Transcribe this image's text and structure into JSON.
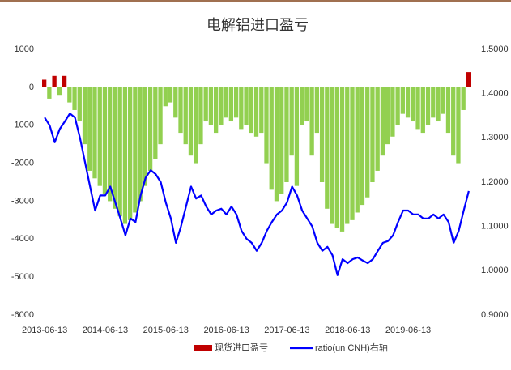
{
  "chart_data": {
    "type": "bar_line",
    "title": "电解铝进口盈亏",
    "categories": [
      "2013-06-13",
      null,
      null,
      null,
      null,
      null,
      null,
      null,
      null,
      null,
      null,
      null,
      "2014-06-13",
      null,
      null,
      null,
      null,
      null,
      null,
      null,
      null,
      null,
      null,
      null,
      "2015-06-13",
      null,
      null,
      null,
      null,
      null,
      null,
      null,
      null,
      null,
      null,
      null,
      "2016-06-13",
      null,
      null,
      null,
      null,
      null,
      null,
      null,
      null,
      null,
      null,
      null,
      "2017-06-13",
      null,
      null,
      null,
      null,
      null,
      null,
      null,
      null,
      null,
      null,
      null,
      "2018-06-13",
      null,
      null,
      null,
      null,
      null,
      null,
      null,
      null,
      null,
      null,
      null,
      "2019-06-13",
      null,
      null,
      null,
      null,
      null,
      null,
      null,
      null,
      null,
      null,
      null,
      null
    ],
    "series": [
      {
        "name": "现货进口盈亏",
        "color": "#c00000",
        "negative_color": "#92d050",
        "values": [
          200,
          -300,
          300,
          -200,
          300,
          -400,
          -600,
          -900,
          -1500,
          -2200,
          -2400,
          -2600,
          -2800,
          -3000,
          -3200,
          -3400,
          -3600,
          -3500,
          -3300,
          -3000,
          -2600,
          -2200,
          -1900,
          -1500,
          -500,
          -400,
          -800,
          -1200,
          -1500,
          -1800,
          -2000,
          -1500,
          -900,
          -1000,
          -1200,
          -1000,
          -800,
          -900,
          -800,
          -1100,
          -1000,
          -1200,
          -1300,
          -1200,
          -2000,
          -2700,
          -3000,
          -2800,
          -2500,
          -1800,
          -2600,
          -1000,
          -900,
          -1800,
          -1200,
          -2500,
          -3200,
          -3600,
          -3700,
          -3800,
          -3600,
          -3500,
          -3300,
          -3100,
          -2900,
          -2500,
          -2200,
          -1800,
          -1500,
          -1300,
          -1000,
          -700,
          -800,
          -900,
          -1100,
          -1200,
          -1000,
          -800,
          -900,
          -700,
          -1200,
          -1800,
          -2000,
          -600,
          400
        ]
      },
      {
        "name": "ratio(un CNH)右轴",
        "color": "#0000ff",
        "axis": "y2",
        "values": [
          1.346,
          1.328,
          1.29,
          1.32,
          1.337,
          1.355,
          1.346,
          1.3,
          1.245,
          1.19,
          1.136,
          1.17,
          1.17,
          1.19,
          1.154,
          1.118,
          1.08,
          1.118,
          1.11,
          1.17,
          1.21,
          1.227,
          1.218,
          1.2,
          1.154,
          1.118,
          1.063,
          1.1,
          1.145,
          1.19,
          1.163,
          1.17,
          1.145,
          1.127,
          1.136,
          1.14,
          1.127,
          1.145,
          1.127,
          1.09,
          1.072,
          1.063,
          1.045,
          1.063,
          1.09,
          1.11,
          1.127,
          1.136,
          1.154,
          1.19,
          1.17,
          1.136,
          1.118,
          1.1,
          1.063,
          1.045,
          1.054,
          1.035,
          0.99,
          1.026,
          1.017,
          1.026,
          1.03,
          1.023,
          1.017,
          1.026,
          1.045,
          1.063,
          1.067,
          1.08,
          1.11,
          1.136,
          1.136,
          1.127,
          1.127,
          1.118,
          1.118,
          1.127,
          1.118,
          1.127,
          1.11,
          1.063,
          1.09,
          1.136,
          1.18
        ]
      }
    ],
    "ylim": [
      -6000,
      1000
    ],
    "yticks": [
      1000,
      0,
      -1000,
      -2000,
      -3000,
      -4000,
      -5000,
      -6000
    ],
    "y2lim": [
      0.9,
      1.5
    ],
    "y2ticks": [
      {
        "value": 1.5,
        "label": "1.5000"
      },
      {
        "value": 1.4,
        "label": "1.4000"
      },
      {
        "value": 1.3,
        "label": "1.3000"
      },
      {
        "value": 1.2,
        "label": "1.2000"
      },
      {
        "value": 1.1,
        "label": "1.1000"
      },
      {
        "value": 1.0,
        "label": "1.0000"
      },
      {
        "value": 0.9,
        "label": "0.9000"
      }
    ]
  }
}
